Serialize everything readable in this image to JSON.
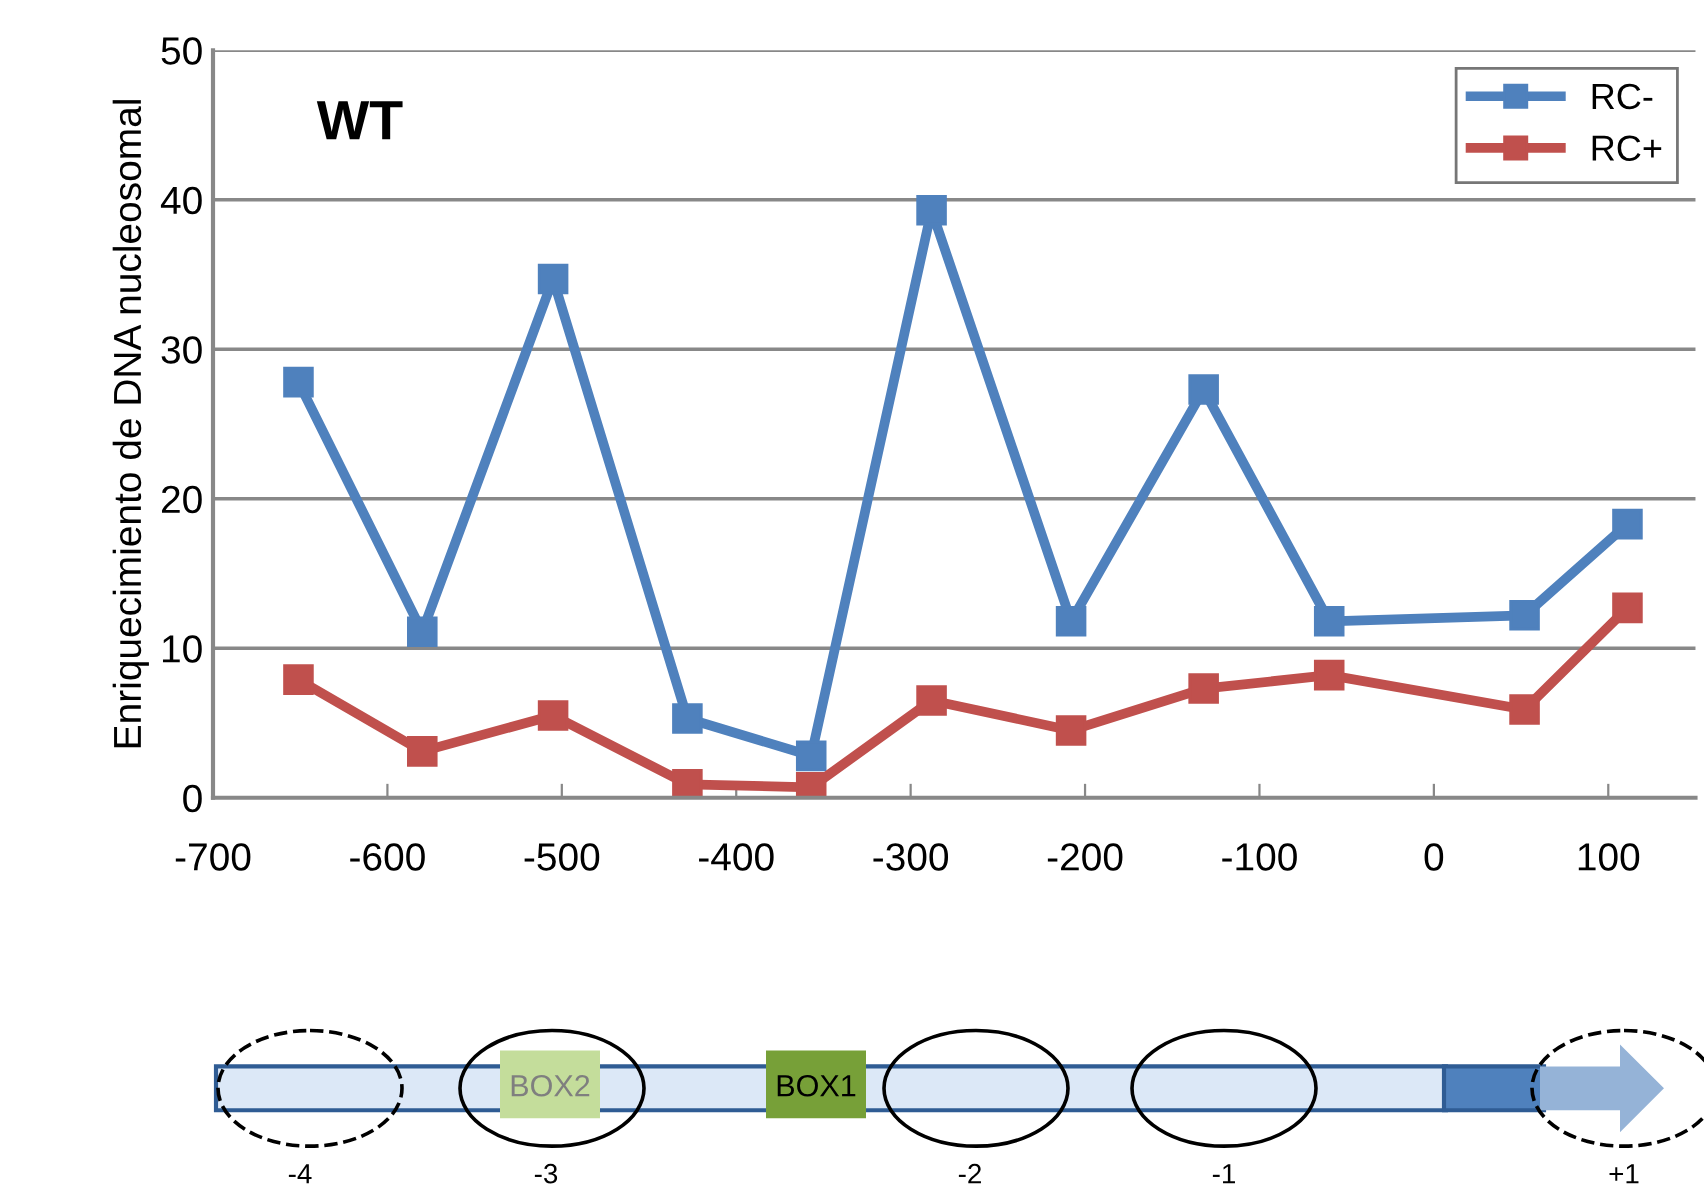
{
  "chart_data": {
    "type": "line",
    "ylabel": "Enriquecimiento de DNA nucleosomal",
    "x": [
      -651,
      -580,
      -505,
      -428,
      -357,
      -288,
      -208,
      -132,
      -60,
      52,
      111
    ],
    "series": [
      {
        "name": "RC-",
        "color": "#4f81bd",
        "values": [
          27.8,
          11.1,
          34.7,
          5.3,
          2.8,
          39.3,
          11.8,
          27.3,
          11.8,
          12.2,
          18.3
        ]
      },
      {
        "name": "RC+",
        "color": "#c0504d",
        "values": [
          7.9,
          3.1,
          5.5,
          0.9,
          0.7,
          6.5,
          4.5,
          7.3,
          8.2,
          5.9,
          12.7
        ]
      }
    ],
    "xlim": [
      -700,
      150
    ],
    "xticks": [
      -700,
      -600,
      -500,
      -400,
      -300,
      -200,
      -100,
      0,
      100
    ],
    "ylim": [
      0,
      50
    ],
    "yticks": [
      0,
      10,
      20,
      30,
      40,
      50
    ],
    "grid": "y",
    "legend": "top right",
    "marker": "square",
    "line_style": "solid",
    "annotations": [
      "WT",
      "-4",
      "-3",
      "BOX2",
      "BOX1",
      "-2",
      "-1",
      "+1"
    ]
  }
}
